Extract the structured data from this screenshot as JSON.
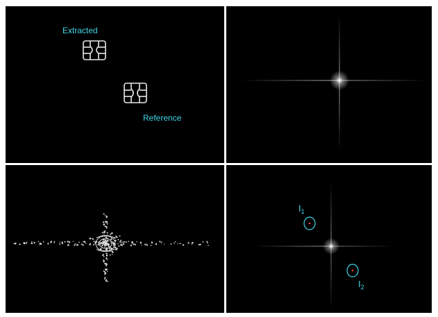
{
  "panels": {
    "top_left": {
      "labels": {
        "extracted": "Extracted",
        "reference": "Reference"
      }
    },
    "bottom_right": {
      "labels": {
        "i1": {
          "letter": "I",
          "subscript": "1"
        },
        "i2": {
          "letter": "I",
          "subscript": "2"
        }
      }
    }
  },
  "colors": {
    "label": "#40d8e8",
    "background": "#000000",
    "separator": "#ffffff",
    "peak_marker": "#ff4040"
  }
}
